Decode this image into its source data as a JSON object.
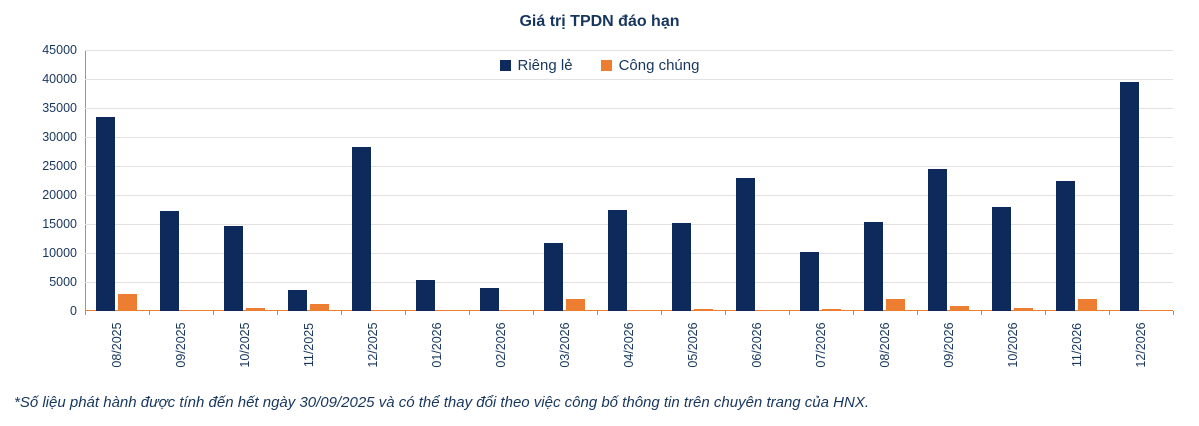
{
  "title": "Giá trị TPDN đáo hạn",
  "footnote": "*Số liệu phát hành được tính đến hết ngày 30/09/2025 và có thể thay đổi theo việc công bố thông tin trên chuyên trang của HNX.",
  "colors": {
    "navy": "#0e2a5c",
    "orange": "#ED7D31",
    "text": "#17365d",
    "grid": "#e2e2e2",
    "axis": "#ED7D31",
    "background": "#ffffff"
  },
  "chart_data": {
    "type": "bar",
    "title": "Giá trị TPDN đáo hạn",
    "categories": [
      "08/2025",
      "09/2025",
      "10/2025",
      "11/2025",
      "12/2025",
      "01/2026",
      "02/2026",
      "03/2026",
      "04/2026",
      "05/2026",
      "06/2026",
      "07/2026",
      "08/2026",
      "09/2026",
      "10/2026",
      "11/2026",
      "12/2026"
    ],
    "series": [
      {
        "name": "Riêng lẻ",
        "color": "#0e2a5c",
        "values": [
          33400,
          17300,
          14600,
          3700,
          28200,
          5300,
          3900,
          11800,
          17400,
          15100,
          22900,
          10100,
          15300,
          24500,
          18000,
          22400,
          39400
        ]
      },
      {
        "name": "Công chúng",
        "color": "#ED7D31",
        "values": [
          2900,
          0,
          500,
          1200,
          0,
          0,
          0,
          2000,
          0,
          400,
          0,
          300,
          2000,
          800,
          500,
          2100,
          0
        ]
      }
    ],
    "xlabel": "",
    "ylabel": "",
    "ylim": [
      0,
      45000
    ],
    "ytick_step": 5000,
    "grid": true,
    "legend_position": "top-center"
  }
}
